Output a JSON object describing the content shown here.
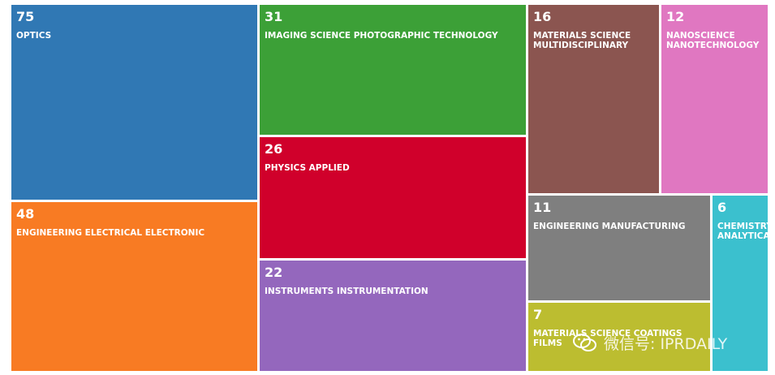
{
  "chart_data": {
    "type": "treemap",
    "items": [
      {
        "value": 75,
        "label": "OPTICS",
        "color": "#3078b4"
      },
      {
        "value": 48,
        "label": "ENGINEERING ELECTRICAL ELECTRONIC",
        "color": "#f87b23"
      },
      {
        "value": 31,
        "label": "IMAGING SCIENCE PHOTOGRAPHIC TECHNOLOGY",
        "color": "#3ca037"
      },
      {
        "value": 26,
        "label": "PHYSICS APPLIED",
        "color": "#d0002b"
      },
      {
        "value": 22,
        "label": "INSTRUMENTS INSTRUMENTATION",
        "color": "#9467bd"
      },
      {
        "value": 16,
        "label": "MATERIALS SCIENCE\nMULTIDISCIPLINARY",
        "color": "#8b5550"
      },
      {
        "value": 12,
        "label": "NANOSCIENCE\nNANOTECHNOLOGY",
        "color": "#e077c1"
      },
      {
        "value": 11,
        "label": "ENGINEERING MANUFACTURING",
        "color": "#7f7f7f"
      },
      {
        "value": 7,
        "label": "MATERIALS SCIENCE COATINGS FILMS",
        "color": "#bcbd30"
      },
      {
        "value": 6,
        "label": "CHEMISTRY\nANALYTICAL",
        "color": "#3bc0ce"
      }
    ]
  },
  "watermark": {
    "text": "微信号: IPRDAILY",
    "icon": "wechat-icon"
  }
}
